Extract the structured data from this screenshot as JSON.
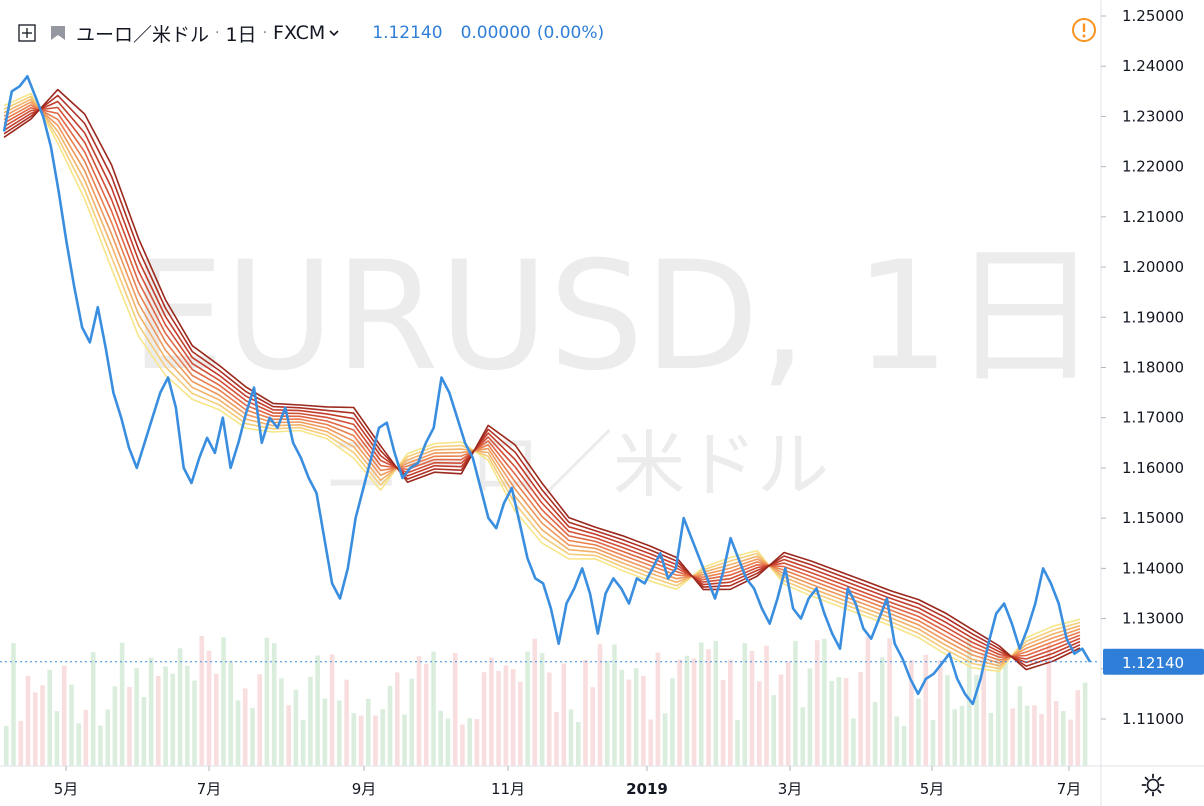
{
  "legend": {
    "symbol_name": "ユーロ／米ドル",
    "interval": "1日",
    "exchange": "FXCM",
    "last_price": "1.12140",
    "change": "0.00000",
    "change_pct": "(0.00%)"
  },
  "watermark": {
    "line1": "EURUSD, 1日",
    "line2": "ユーロ／米ドル"
  },
  "price_tag": "1.12140",
  "colors": {
    "price_line": "#3a8ee0",
    "price_tag_bg": "#2f7fd8",
    "warn": "#f7931e",
    "ribbon": [
      "#f7e58a",
      "#f5cd7a",
      "#f2b26a",
      "#ee985c",
      "#e97f4f",
      "#e06544",
      "#d24f37",
      "#c23d2c",
      "#ae3024",
      "#9a281d"
    ],
    "volume_up": "#cfe8d3",
    "volume_down": "#f5d3d3"
  },
  "chart_data": {
    "type": "line",
    "title": "",
    "symbol": "EURUSD",
    "interval": "1日",
    "ylim": [
      1.1025,
      1.2525
    ],
    "y_ticks": [
      "1.25000",
      "1.24000",
      "1.23000",
      "1.22000",
      "1.21000",
      "1.20000",
      "1.19000",
      "1.18000",
      "1.17000",
      "1.16000",
      "1.15000",
      "1.14000",
      "1.13000",
      "1.12000",
      "1.11000"
    ],
    "x_ticks": [
      "5月",
      "7月",
      "9月",
      "11月",
      "2019",
      "3月",
      "5月",
      "7月"
    ],
    "series": [
      {
        "name": "EURUSD",
        "approximate_daily_close_path": [
          1.227,
          1.235,
          1.236,
          1.238,
          1.234,
          1.23,
          1.224,
          1.215,
          1.205,
          1.196,
          1.188,
          1.185,
          1.192,
          1.184,
          1.175,
          1.17,
          1.164,
          1.16,
          1.165,
          1.17,
          1.175,
          1.178,
          1.172,
          1.16,
          1.157,
          1.162,
          1.166,
          1.163,
          1.17,
          1.16,
          1.165,
          1.171,
          1.176,
          1.165,
          1.17,
          1.168,
          1.172,
          1.165,
          1.162,
          1.158,
          1.155,
          1.146,
          1.137,
          1.134,
          1.14,
          1.15,
          1.156,
          1.162,
          1.168,
          1.169,
          1.163,
          1.158,
          1.16,
          1.161,
          1.165,
          1.168,
          1.178,
          1.175,
          1.17,
          1.165,
          1.162,
          1.156,
          1.15,
          1.148,
          1.153,
          1.156,
          1.149,
          1.142,
          1.138,
          1.137,
          1.132,
          1.125,
          1.133,
          1.136,
          1.14,
          1.135,
          1.127,
          1.135,
          1.138,
          1.136,
          1.133,
          1.138,
          1.137,
          1.14,
          1.143,
          1.138,
          1.14,
          1.15,
          1.146,
          1.142,
          1.138,
          1.134,
          1.139,
          1.146,
          1.142,
          1.138,
          1.136,
          1.132,
          1.129,
          1.134,
          1.14,
          1.132,
          1.13,
          1.134,
          1.136,
          1.131,
          1.127,
          1.124,
          1.136,
          1.133,
          1.128,
          1.126,
          1.13,
          1.134,
          1.125,
          1.122,
          1.118,
          1.115,
          1.118,
          1.119,
          1.121,
          1.123,
          1.118,
          1.115,
          1.113,
          1.118,
          1.125,
          1.131,
          1.133,
          1.129,
          1.124,
          1.128,
          1.133,
          1.14,
          1.137,
          1.133,
          1.126,
          1.123,
          1.124,
          1.1214
        ]
      }
    ],
    "last_value": 1.1214,
    "moving_average_ribbon": {
      "count": 10,
      "center_path": [
        1.229,
        1.232,
        1.23,
        1.222,
        1.21,
        1.196,
        1.186,
        1.179,
        1.176,
        1.172,
        1.17,
        1.17,
        1.169,
        1.167,
        1.16,
        1.16,
        1.162,
        1.162,
        1.165,
        1.158,
        1.151,
        1.146,
        1.145,
        1.143,
        1.141,
        1.139,
        1.138,
        1.139,
        1.141,
        1.14,
        1.138,
        1.136,
        1.134,
        1.132,
        1.13,
        1.127,
        1.124,
        1.122,
        1.123,
        1.125,
        1.127
      ]
    }
  }
}
